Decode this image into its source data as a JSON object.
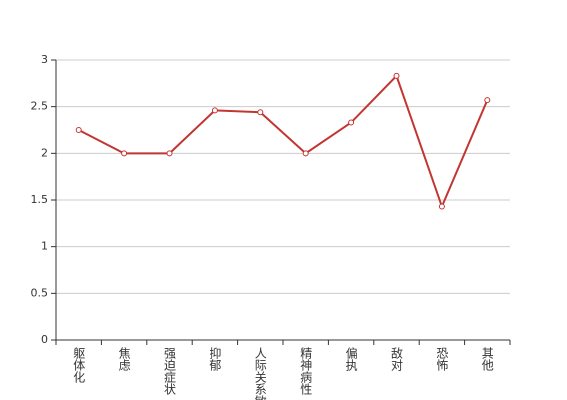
{
  "chart_data": {
    "type": "line",
    "categories": [
      "躯体化",
      "焦虑",
      "强迫症状",
      "抑郁",
      "人际关系敏感",
      "精神病性",
      "偏执",
      "敌对",
      "恐怖",
      "其他"
    ],
    "series": [
      {
        "color": "#c23531",
        "values": [
          2.25,
          2.0,
          2.0,
          2.46,
          2.44,
          2.0,
          2.33,
          2.83,
          1.43,
          2.57
        ]
      }
    ],
    "ylim": [
      0,
      3
    ],
    "yticks": [
      0,
      0.5,
      1,
      1.5,
      2,
      2.5,
      3
    ],
    "grid": true
  }
}
